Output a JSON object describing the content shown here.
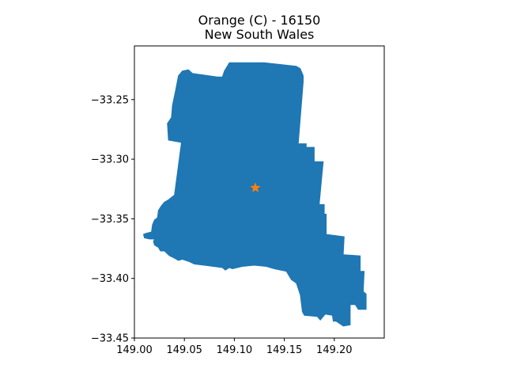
{
  "chart_data": {
    "type": "map",
    "title_line1": "Orange (C) - 16150",
    "title_line2": "New South Wales",
    "xlabel": "",
    "ylabel": "",
    "xlim": [
      149.0,
      149.25
    ],
    "ylim": [
      -33.45,
      -33.205
    ],
    "xticks": [
      149.0,
      149.05,
      149.1,
      149.15,
      149.2
    ],
    "xtick_labels": [
      "149.00",
      "149.05",
      "149.10",
      "149.15",
      "149.20"
    ],
    "yticks": [
      -33.25,
      -33.3,
      -33.35,
      -33.4,
      -33.45
    ],
    "ytick_labels": [
      "−33.25",
      "−33.30",
      "−33.35",
      "−33.40",
      "−33.45"
    ],
    "region_color": "#1f77b4",
    "marker": {
      "shape": "star",
      "color": "#ff7f0e",
      "lon": 149.121,
      "lat": -33.324
    },
    "boundary": [
      [
        149.097,
        -33.219
      ],
      [
        149.13,
        -33.219
      ],
      [
        149.162,
        -33.222
      ],
      [
        149.166,
        -33.224
      ],
      [
        149.169,
        -33.23
      ],
      [
        149.169,
        -33.235
      ],
      [
        149.168,
        -33.245
      ],
      [
        149.164,
        -33.287
      ],
      [
        149.172,
        -33.287
      ],
      [
        149.172,
        -33.29
      ],
      [
        149.18,
        -33.29
      ],
      [
        149.18,
        -33.302
      ],
      [
        149.189,
        -33.302
      ],
      [
        149.185,
        -33.338
      ],
      [
        149.19,
        -33.338
      ],
      [
        149.19,
        -33.346
      ],
      [
        149.192,
        -33.346
      ],
      [
        149.192,
        -33.363
      ],
      [
        149.21,
        -33.365
      ],
      [
        149.209,
        -33.38
      ],
      [
        149.226,
        -33.381
      ],
      [
        149.226,
        -33.394
      ],
      [
        149.23,
        -33.394
      ],
      [
        149.229,
        -33.411
      ],
      [
        149.232,
        -33.413
      ],
      [
        149.232,
        -33.426
      ],
      [
        149.224,
        -33.426
      ],
      [
        149.221,
        -33.422
      ],
      [
        149.216,
        -33.422
      ],
      [
        149.216,
        -33.439
      ],
      [
        149.209,
        -33.44
      ],
      [
        149.202,
        -33.436
      ],
      [
        149.199,
        -33.436
      ],
      [
        149.198,
        -33.431
      ],
      [
        149.191,
        -33.43
      ],
      [
        149.186,
        -33.435
      ],
      [
        149.183,
        -33.432
      ],
      [
        149.17,
        -33.431
      ],
      [
        149.168,
        -33.428
      ],
      [
        149.166,
        -33.414
      ],
      [
        149.162,
        -33.404
      ],
      [
        149.157,
        -33.401
      ],
      [
        149.152,
        -33.394
      ],
      [
        149.14,
        -33.392
      ],
      [
        149.132,
        -33.39
      ],
      [
        149.12,
        -33.389
      ],
      [
        149.108,
        -33.39
      ],
      [
        149.098,
        -33.392
      ],
      [
        149.095,
        -33.391
      ],
      [
        149.091,
        -33.393
      ],
      [
        149.088,
        -33.391
      ],
      [
        149.07,
        -33.389
      ],
      [
        149.06,
        -33.388
      ],
      [
        149.055,
        -33.386
      ],
      [
        149.048,
        -33.384
      ],
      [
        149.044,
        -33.385
      ],
      [
        149.04,
        -33.383
      ],
      [
        149.035,
        -33.381
      ],
      [
        149.03,
        -33.377
      ],
      [
        149.026,
        -33.377
      ],
      [
        149.024,
        -33.374
      ],
      [
        149.02,
        -33.372
      ],
      [
        149.019,
        -33.369
      ],
      [
        149.02,
        -33.367
      ],
      [
        149.015,
        -33.367
      ],
      [
        149.01,
        -33.366
      ],
      [
        149.009,
        -33.363
      ],
      [
        149.012,
        -33.362
      ],
      [
        149.017,
        -33.361
      ],
      [
        149.018,
        -33.355
      ],
      [
        149.02,
        -33.351
      ],
      [
        149.023,
        -33.349
      ],
      [
        149.024,
        -33.343
      ],
      [
        149.027,
        -33.339
      ],
      [
        149.03,
        -33.336
      ],
      [
        149.034,
        -33.334
      ],
      [
        149.04,
        -33.33
      ],
      [
        149.047,
        -33.286
      ],
      [
        149.034,
        -33.284
      ],
      [
        149.033,
        -33.27
      ],
      [
        149.037,
        -33.265
      ],
      [
        149.038,
        -33.255
      ],
      [
        149.041,
        -33.243
      ],
      [
        149.044,
        -33.23
      ],
      [
        149.048,
        -33.226
      ],
      [
        149.054,
        -33.225
      ],
      [
        149.058,
        -33.228
      ],
      [
        149.066,
        -33.229
      ],
      [
        149.083,
        -33.231
      ],
      [
        149.088,
        -33.231
      ],
      [
        149.09,
        -33.226
      ],
      [
        149.095,
        -33.219
      ]
    ]
  }
}
